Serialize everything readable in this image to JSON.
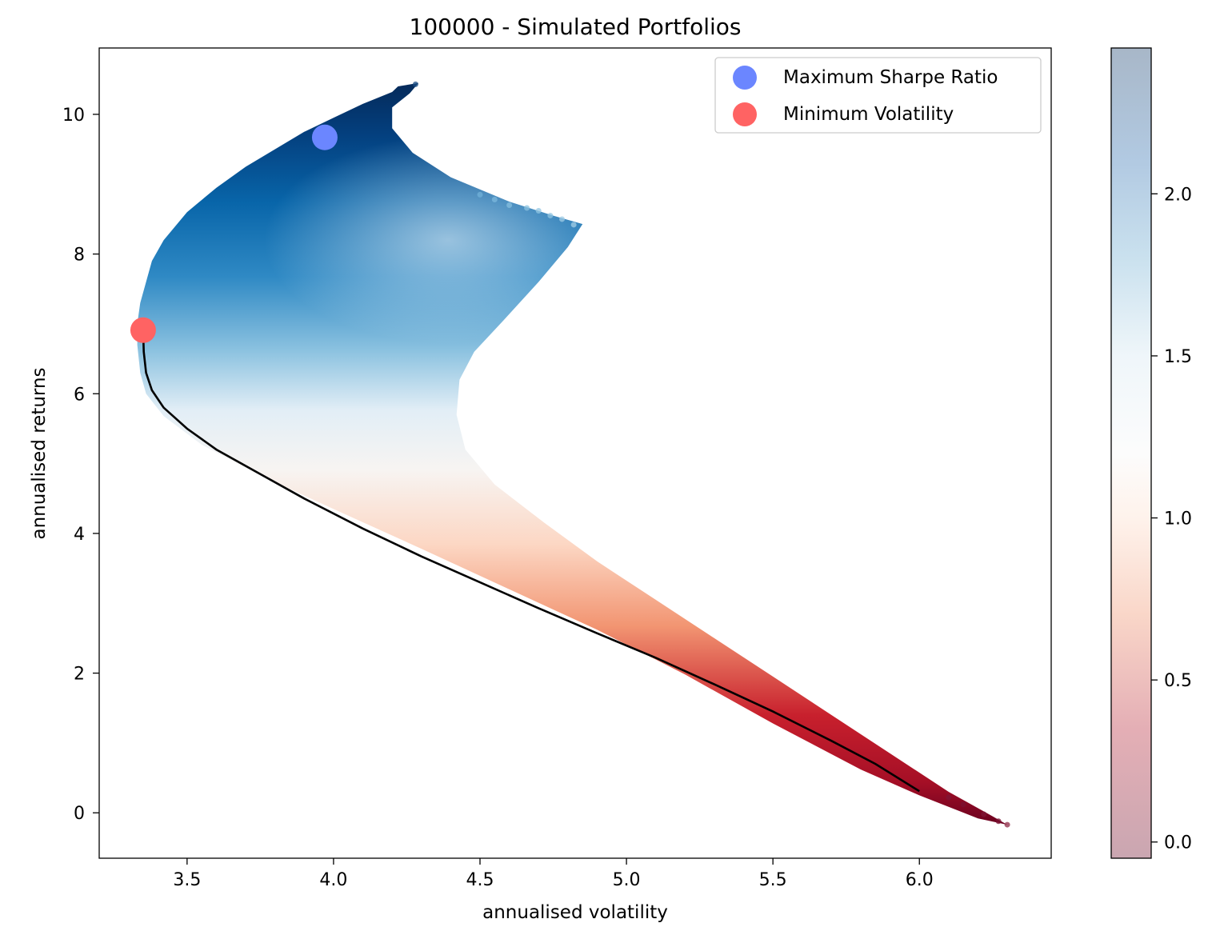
{
  "chart_data": {
    "type": "scatter",
    "title": "100000 - Simulated Portfolios",
    "xlabel": "annualised volatility",
    "ylabel": "annualised returns",
    "xlim": [
      3.2,
      6.45
    ],
    "ylim": [
      -0.65,
      10.95
    ],
    "x_ticks": [
      "3.5",
      "4.0",
      "4.5",
      "5.0",
      "5.5",
      "6.0"
    ],
    "y_ticks": [
      "0",
      "2",
      "4",
      "6",
      "8",
      "10"
    ],
    "grid": false,
    "legend_position": "upper-right",
    "series": [
      {
        "name": "Maximum Sharpe Ratio",
        "marker": "circle",
        "color": "#6b86ff",
        "points": [
          {
            "x": 3.97,
            "y": 9.67
          }
        ]
      },
      {
        "name": "Minimum Volatility",
        "marker": "circle",
        "color": "#ff6363",
        "points": [
          {
            "x": 3.35,
            "y": 6.91
          }
        ]
      }
    ],
    "efficient_frontier": {
      "color": "#000000",
      "x": [
        3.35,
        3.352,
        3.36,
        3.38,
        3.42,
        3.5,
        3.6,
        3.75,
        3.9,
        4.1,
        4.3,
        4.5,
        4.7,
        4.9,
        5.1,
        5.3,
        5.5,
        5.7,
        5.85,
        6.0
      ],
      "y": [
        6.91,
        6.6,
        6.3,
        6.05,
        5.8,
        5.5,
        5.2,
        4.85,
        4.5,
        4.07,
        3.67,
        3.3,
        2.93,
        2.57,
        2.22,
        1.84,
        1.45,
        1.03,
        0.7,
        0.31
      ]
    },
    "cloud_boundary": {
      "frontier_x": [
        3.34,
        3.33,
        3.33,
        3.34,
        3.36,
        3.38,
        3.42,
        3.5,
        3.6,
        3.7,
        3.8,
        3.9,
        4.0,
        4.1,
        4.2,
        4.22
      ],
      "frontier_y": [
        6.3,
        6.7,
        7.0,
        7.3,
        7.6,
        7.9,
        8.2,
        8.6,
        8.95,
        9.25,
        9.5,
        9.75,
        9.95,
        10.15,
        10.32,
        10.4
      ],
      "outer_x": [
        4.29,
        4.26,
        4.2,
        4.2,
        4.27,
        4.4,
        4.6,
        4.75,
        4.85,
        4.8,
        4.7,
        4.58,
        4.48,
        4.43,
        4.42,
        4.45,
        4.55,
        4.72,
        4.9,
        5.1,
        5.3,
        5.5,
        5.7,
        5.9,
        6.1,
        6.25,
        6.3
      ],
      "outer_y": [
        10.45,
        10.3,
        10.1,
        9.8,
        9.45,
        9.1,
        8.75,
        8.55,
        8.43,
        8.1,
        7.6,
        7.05,
        6.6,
        6.2,
        5.7,
        5.2,
        4.7,
        4.15,
        3.6,
        3.05,
        2.5,
        1.95,
        1.4,
        0.85,
        0.3,
        -0.05,
        -0.17
      ],
      "lower_x": [
        6.2,
        6.0,
        5.8,
        5.5,
        5.2,
        4.9,
        4.6,
        4.3,
        4.0,
        3.75,
        3.55,
        3.42,
        3.36,
        3.34
      ],
      "lower_y": [
        -0.08,
        0.25,
        0.62,
        1.28,
        1.98,
        2.62,
        3.2,
        3.78,
        4.35,
        4.83,
        5.27,
        5.68,
        6.0,
        6.3
      ]
    },
    "colorbar": {
      "colormap": "RdBu",
      "range": [
        -0.05,
        2.45
      ],
      "ticks": [
        "0.0",
        "0.5",
        "1.0",
        "1.5",
        "2.0"
      ],
      "stops": [
        {
          "value": -0.05,
          "color": "#67001f"
        },
        {
          "value": 0.35,
          "color": "#b2182b"
        },
        {
          "value": 0.7,
          "color": "#ef8a62"
        },
        {
          "value": 1.0,
          "color": "#fddbc7"
        },
        {
          "value": 1.2,
          "color": "#f7f7f7"
        },
        {
          "value": 1.5,
          "color": "#d1e5f0"
        },
        {
          "value": 1.8,
          "color": "#67a9cf"
        },
        {
          "value": 2.1,
          "color": "#2166ac"
        },
        {
          "value": 2.45,
          "color": "#053061"
        }
      ]
    }
  }
}
